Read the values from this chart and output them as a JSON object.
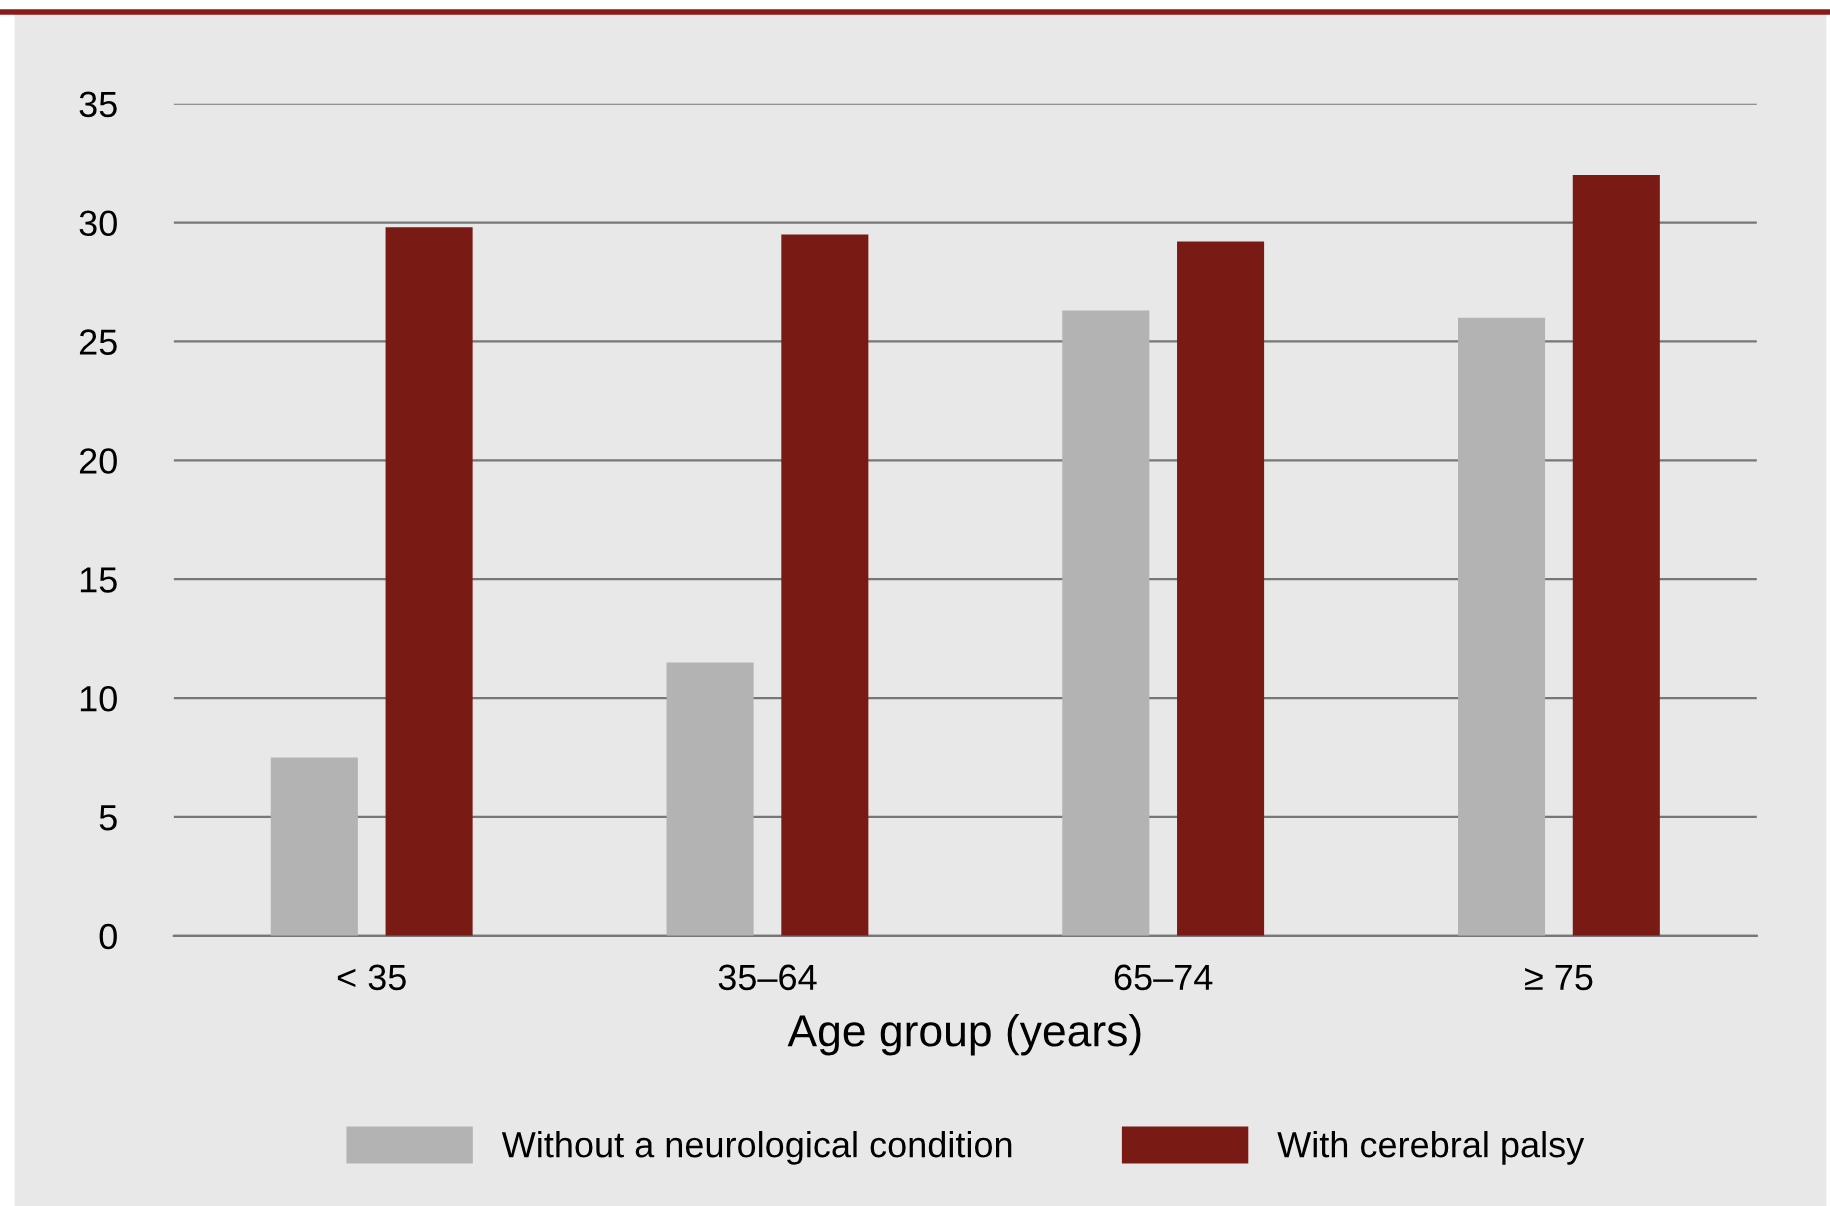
{
  "chart_data": {
    "type": "bar",
    "xlabel": "Age group (years)",
    "categories": [
      "< 35",
      "35–64",
      "65–74",
      "≥ 75"
    ],
    "series": [
      {
        "name": "Without a neurological condition",
        "color": "#b3b3b3",
        "values": [
          7.5,
          11.5,
          26.3,
          26.0
        ]
      },
      {
        "name": "With cerebral palsy",
        "color": "#7a1a14",
        "values": [
          29.8,
          29.5,
          29.2,
          32.0
        ]
      }
    ],
    "ylim": [
      0,
      35
    ],
    "yticks": [
      0,
      5,
      10,
      15,
      20,
      25,
      30,
      35
    ],
    "grid": "y",
    "legend": "bottom"
  }
}
